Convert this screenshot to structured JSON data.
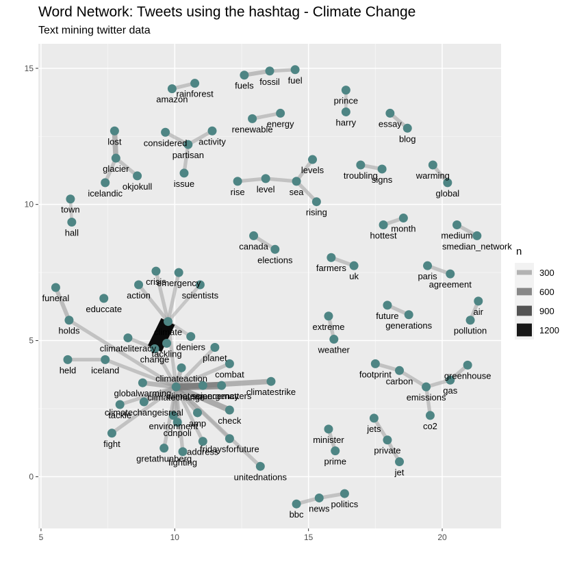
{
  "chart_data": {
    "type": "network",
    "title": "Word Network: Tweets using the hashtag - Climate Change",
    "subtitle": "Text mining twitter data",
    "xlabel": "",
    "ylabel": "",
    "xlim": [
      4.9,
      22.2
    ],
    "ylim": [
      -1.9,
      15.9
    ],
    "x_ticks": [
      5,
      10,
      15,
      20
    ],
    "y_ticks": [
      0,
      5,
      10,
      15
    ],
    "grid": true,
    "panel_background": "#ebebeb",
    "node_color": "#4e8584",
    "edge_color_scale": [
      "#bdbdbd",
      "#000000"
    ],
    "legend": {
      "title": "n",
      "position": "right",
      "entries": [
        {
          "label": "300",
          "value": 300
        },
        {
          "label": "600",
          "value": 600
        },
        {
          "label": "900",
          "value": 900
        },
        {
          "label": "1200",
          "value": 1200
        }
      ]
    },
    "nodes": [
      {
        "label": "rainforest",
        "x": 10.75,
        "y": 14.45
      },
      {
        "label": "amazon",
        "x": 9.9,
        "y": 14.25
      },
      {
        "label": "fuels",
        "x": 12.6,
        "y": 14.75
      },
      {
        "label": "fossil",
        "x": 13.55,
        "y": 14.9
      },
      {
        "label": "fuel",
        "x": 14.5,
        "y": 14.95
      },
      {
        "label": "prince",
        "x": 16.4,
        "y": 14.2
      },
      {
        "label": "harry",
        "x": 16.4,
        "y": 13.4
      },
      {
        "label": "renewable",
        "x": 12.9,
        "y": 13.15
      },
      {
        "label": "energy",
        "x": 13.95,
        "y": 13.35
      },
      {
        "label": "essay",
        "x": 18.05,
        "y": 13.35
      },
      {
        "label": "blog",
        "x": 18.7,
        "y": 12.8
      },
      {
        "label": "lost",
        "x": 7.75,
        "y": 12.7
      },
      {
        "label": "considered",
        "x": 9.65,
        "y": 12.65
      },
      {
        "label": "activity",
        "x": 11.4,
        "y": 12.7
      },
      {
        "label": "partisan",
        "x": 10.5,
        "y": 12.2
      },
      {
        "label": "glacier",
        "x": 7.8,
        "y": 11.7
      },
      {
        "label": "okjokull",
        "x": 8.6,
        "y": 11.05
      },
      {
        "label": "icelandic",
        "x": 7.4,
        "y": 10.8
      },
      {
        "label": "issue",
        "x": 10.35,
        "y": 11.15
      },
      {
        "label": "levels",
        "x": 15.15,
        "y": 11.65
      },
      {
        "label": "troubling",
        "x": 16.95,
        "y": 11.45
      },
      {
        "label": "signs",
        "x": 17.75,
        "y": 11.3
      },
      {
        "label": "warming",
        "x": 19.65,
        "y": 11.45
      },
      {
        "label": "global",
        "x": 20.2,
        "y": 10.8
      },
      {
        "label": "rise",
        "x": 12.35,
        "y": 10.85
      },
      {
        "label": "level",
        "x": 13.4,
        "y": 10.95
      },
      {
        "label": "sea",
        "x": 14.55,
        "y": 10.85
      },
      {
        "label": "rising",
        "x": 15.3,
        "y": 10.1
      },
      {
        "label": "town",
        "x": 6.1,
        "y": 10.2
      },
      {
        "label": "hall",
        "x": 6.15,
        "y": 9.35
      },
      {
        "label": "hottest",
        "x": 17.8,
        "y": 9.25
      },
      {
        "label": "month",
        "x": 18.55,
        "y": 9.5
      },
      {
        "label": "medium",
        "x": 20.55,
        "y": 9.25
      },
      {
        "label": "smedian_network",
        "x": 21.3,
        "y": 8.85
      },
      {
        "label": "canada",
        "x": 12.95,
        "y": 8.85
      },
      {
        "label": "elections",
        "x": 13.75,
        "y": 8.35
      },
      {
        "label": "farmers",
        "x": 15.85,
        "y": 8.05
      },
      {
        "label": "uk",
        "x": 16.7,
        "y": 7.75
      },
      {
        "label": "paris",
        "x": 19.45,
        "y": 7.75
      },
      {
        "label": "agreement",
        "x": 20.3,
        "y": 7.45
      },
      {
        "label": "crisis",
        "x": 9.3,
        "y": 7.55
      },
      {
        "label": "emergency",
        "x": 10.15,
        "y": 7.5
      },
      {
        "label": "action",
        "x": 8.65,
        "y": 7.05
      },
      {
        "label": "scientists",
        "x": 10.95,
        "y": 7.05
      },
      {
        "label": "funeral",
        "x": 5.55,
        "y": 6.95
      },
      {
        "label": "educcate",
        "x": 7.35,
        "y": 6.55
      },
      {
        "label": "future",
        "x": 17.95,
        "y": 6.3
      },
      {
        "label": "generations",
        "x": 18.75,
        "y": 5.95
      },
      {
        "label": "air",
        "x": 21.35,
        "y": 6.45
      },
      {
        "label": "extreme",
        "x": 15.75,
        "y": 5.9
      },
      {
        "label": "holds",
        "x": 6.05,
        "y": 5.75
      },
      {
        "label": "climate",
        "x": 9.75,
        "y": 5.7
      },
      {
        "label": "pollution",
        "x": 21.05,
        "y": 5.75
      },
      {
        "label": "deniers",
        "x": 10.6,
        "y": 5.15
      },
      {
        "label": "climateliteracy",
        "x": 8.25,
        "y": 5.1
      },
      {
        "label": "weather",
        "x": 15.95,
        "y": 5.05
      },
      {
        "label": "tackling",
        "x": 9.7,
        "y": 4.9
      },
      {
        "label": "change",
        "x": 9.25,
        "y": 4.7
      },
      {
        "label": "planet",
        "x": 11.5,
        "y": 4.75
      },
      {
        "label": "held",
        "x": 6.0,
        "y": 4.3
      },
      {
        "label": "iceland",
        "x": 7.4,
        "y": 4.3
      },
      {
        "label": "combat",
        "x": 12.05,
        "y": 4.15
      },
      {
        "label": "footprint",
        "x": 17.5,
        "y": 4.15
      },
      {
        "label": "greenhouse",
        "x": 20.95,
        "y": 4.1
      },
      {
        "label": "climateaction",
        "x": 10.25,
        "y": 4.0
      },
      {
        "label": "carbon",
        "x": 18.4,
        "y": 3.9
      },
      {
        "label": "gas",
        "x": 20.3,
        "y": 3.55
      },
      {
        "label": "climatestrike",
        "x": 13.6,
        "y": 3.5
      },
      {
        "label": "globalwarming",
        "x": 8.8,
        "y": 3.45
      },
      {
        "label": "climatechange",
        "x": 10.05,
        "y": 3.3
      },
      {
        "label": "climateemergency",
        "x": 11.05,
        "y": 3.35
      },
      {
        "label": "sciencematters",
        "x": 11.75,
        "y": 3.35
      },
      {
        "label": "emissions",
        "x": 19.4,
        "y": 3.3
      },
      {
        "label": "climatechangeisreal",
        "x": 8.85,
        "y": 2.75
      },
      {
        "label": "tackle",
        "x": 7.95,
        "y": 2.65
      },
      {
        "label": "check",
        "x": 12.05,
        "y": 2.45
      },
      {
        "label": "amp",
        "x": 10.85,
        "y": 2.35
      },
      {
        "label": "environment",
        "x": 9.95,
        "y": 2.25
      },
      {
        "label": "co2",
        "x": 19.55,
        "y": 2.25
      },
      {
        "label": "jets",
        "x": 17.45,
        "y": 2.15
      },
      {
        "label": "cdnpoli",
        "x": 10.1,
        "y": 2.0
      },
      {
        "label": "minister",
        "x": 15.75,
        "y": 1.75
      },
      {
        "label": "fight",
        "x": 7.65,
        "y": 1.6
      },
      {
        "label": "fridaysforfuture",
        "x": 12.05,
        "y": 1.4
      },
      {
        "label": "private",
        "x": 17.95,
        "y": 1.35
      },
      {
        "label": "address",
        "x": 11.05,
        "y": 1.3
      },
      {
        "label": "gretathunberg",
        "x": 9.6,
        "y": 1.05
      },
      {
        "label": "prime",
        "x": 16.0,
        "y": 0.95
      },
      {
        "label": "fighting",
        "x": 10.3,
        "y": 0.92
      },
      {
        "label": "unitednations",
        "x": 13.2,
        "y": 0.38
      },
      {
        "label": "jet",
        "x": 18.4,
        "y": 0.55
      },
      {
        "label": "politics",
        "x": 16.35,
        "y": -0.62
      },
      {
        "label": "news",
        "x": 15.4,
        "y": -0.78
      },
      {
        "label": "bbc",
        "x": 14.55,
        "y": -1.0
      }
    ],
    "edges": [
      {
        "from": "climate",
        "to": "change",
        "n": 1250
      },
      {
        "from": "climate",
        "to": "crisis",
        "n": 150
      },
      {
        "from": "climate",
        "to": "action",
        "n": 150
      },
      {
        "from": "climate",
        "to": "emergency",
        "n": 150
      },
      {
        "from": "climate",
        "to": "scientists",
        "n": 120
      },
      {
        "from": "climate",
        "to": "deniers",
        "n": 120
      },
      {
        "from": "change",
        "to": "tackling",
        "n": 120
      },
      {
        "from": "change",
        "to": "climateliteracy",
        "n": 150
      },
      {
        "from": "climatechange",
        "to": "climateaction",
        "n": 200
      },
      {
        "from": "climatechange",
        "to": "climateemergency",
        "n": 350
      },
      {
        "from": "climatechange",
        "to": "sciencematters",
        "n": 500
      },
      {
        "from": "climatechange",
        "to": "climatestrike",
        "n": 300
      },
      {
        "from": "climatechange",
        "to": "planet",
        "n": 150
      },
      {
        "from": "climatechange",
        "to": "combat",
        "n": 150
      },
      {
        "from": "climatechange",
        "to": "globalwarming",
        "n": 250
      },
      {
        "from": "climatechange",
        "to": "climatechangeisreal",
        "n": 200
      },
      {
        "from": "climatechange",
        "to": "tackle",
        "n": 150
      },
      {
        "from": "climatechange",
        "to": "environment",
        "n": 200
      },
      {
        "from": "climatechange",
        "to": "amp",
        "n": 200
      },
      {
        "from": "climatechange",
        "to": "check",
        "n": 350
      },
      {
        "from": "climatechange",
        "to": "cdnpoli",
        "n": 150
      },
      {
        "from": "climatechange",
        "to": "fight",
        "n": 150
      },
      {
        "from": "climatechange",
        "to": "fridaysforfuture",
        "n": 150
      },
      {
        "from": "climatechange",
        "to": "address",
        "n": 150
      },
      {
        "from": "climatechange",
        "to": "gretathunberg",
        "n": 150
      },
      {
        "from": "climatechange",
        "to": "fighting",
        "n": 150
      },
      {
        "from": "climatechange",
        "to": "unitednations",
        "n": 150
      },
      {
        "from": "climatechange",
        "to": "iceland",
        "n": 150
      },
      {
        "from": "climatechange",
        "to": "holds",
        "n": 150
      },
      {
        "from": "climatechange",
        "to": "change",
        "n": 150
      },
      {
        "from": "climatechange",
        "to": "climate",
        "n": 150
      },
      {
        "from": "holds",
        "to": "funeral",
        "n": 200
      },
      {
        "from": "iceland",
        "to": "held",
        "n": 150
      },
      {
        "from": "lost",
        "to": "glacier",
        "n": 300
      },
      {
        "from": "glacier",
        "to": "okjokull",
        "n": 150
      },
      {
        "from": "glacier",
        "to": "icelandic",
        "n": 150
      },
      {
        "from": "considered",
        "to": "partisan",
        "n": 150
      },
      {
        "from": "partisan",
        "to": "activity",
        "n": 150
      },
      {
        "from": "partisan",
        "to": "issue",
        "n": 150
      },
      {
        "from": "amazon",
        "to": "rainforest",
        "n": 150
      },
      {
        "from": "fuels",
        "to": "fossil",
        "n": 200
      },
      {
        "from": "fossil",
        "to": "fuel",
        "n": 150
      },
      {
        "from": "renewable",
        "to": "energy",
        "n": 150
      },
      {
        "from": "prince",
        "to": "harry",
        "n": 100
      },
      {
        "from": "essay",
        "to": "blog",
        "n": 150
      },
      {
        "from": "rise",
        "to": "level",
        "n": 150
      },
      {
        "from": "level",
        "to": "sea",
        "n": 150
      },
      {
        "from": "sea",
        "to": "levels",
        "n": 150
      },
      {
        "from": "sea",
        "to": "rising",
        "n": 150
      },
      {
        "from": "troubling",
        "to": "signs",
        "n": 150
      },
      {
        "from": "warming",
        "to": "global",
        "n": 150
      },
      {
        "from": "town",
        "to": "hall",
        "n": 100
      },
      {
        "from": "hottest",
        "to": "month",
        "n": 150
      },
      {
        "from": "medium",
        "to": "smedian_network",
        "n": 150
      },
      {
        "from": "canada",
        "to": "elections",
        "n": 150
      },
      {
        "from": "farmers",
        "to": "uk",
        "n": 150
      },
      {
        "from": "paris",
        "to": "agreement",
        "n": 150
      },
      {
        "from": "future",
        "to": "generations",
        "n": 150
      },
      {
        "from": "air",
        "to": "pollution",
        "n": 150
      },
      {
        "from": "extreme",
        "to": "weather",
        "n": 150
      },
      {
        "from": "footprint",
        "to": "carbon",
        "n": 150
      },
      {
        "from": "carbon",
        "to": "emissions",
        "n": 150
      },
      {
        "from": "greenhouse",
        "to": "gas",
        "n": 150
      },
      {
        "from": "gas",
        "to": "emissions",
        "n": 150
      },
      {
        "from": "emissions",
        "to": "co2",
        "n": 150
      },
      {
        "from": "jets",
        "to": "private",
        "n": 150
      },
      {
        "from": "private",
        "to": "jet",
        "n": 150
      },
      {
        "from": "minister",
        "to": "prime",
        "n": 150
      },
      {
        "from": "bbc",
        "to": "news",
        "n": 150
      },
      {
        "from": "news",
        "to": "politics",
        "n": 150
      }
    ]
  }
}
